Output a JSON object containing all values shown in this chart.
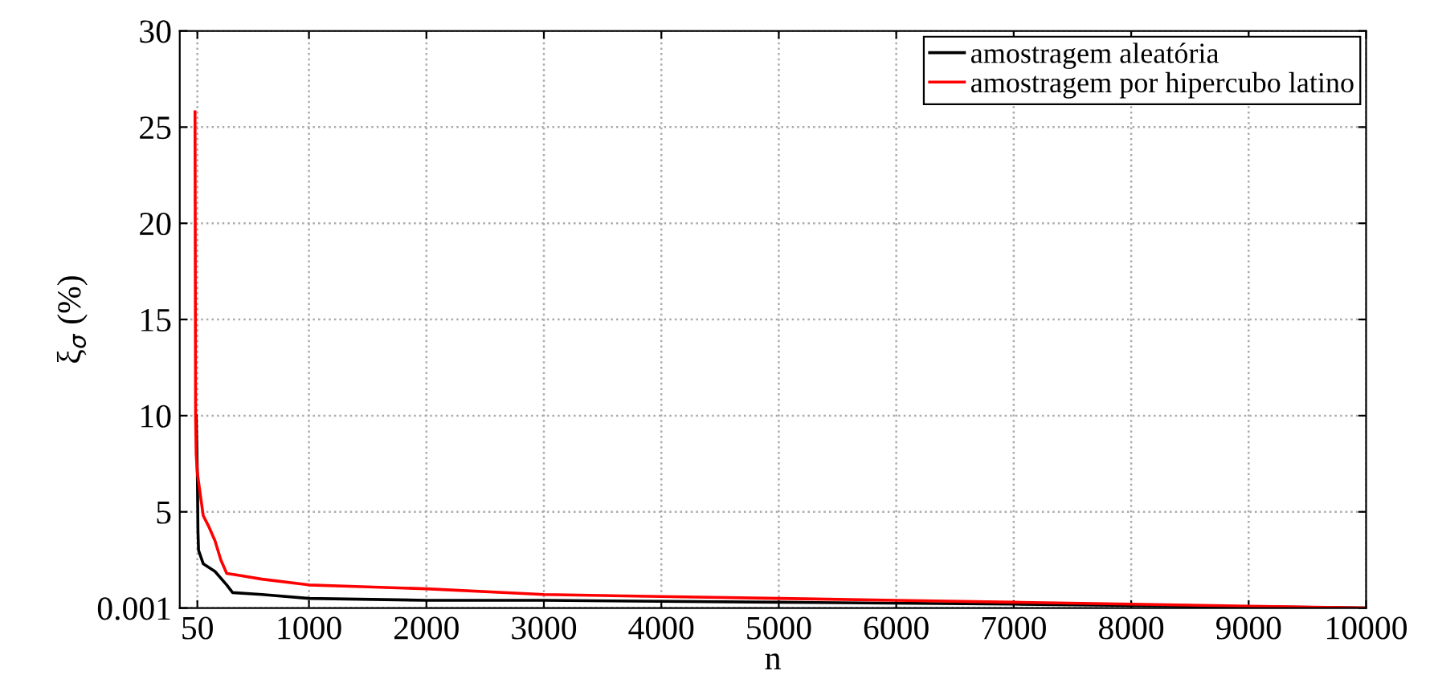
{
  "chart_data": {
    "type": "line",
    "xlabel": "n",
    "ylabel": "ξ$_{σ}$ (%)",
    "xlim": [
      -100,
      10000
    ],
    "xticks": [
      50,
      1000,
      2000,
      3000,
      4000,
      5000,
      6000,
      7000,
      8000,
      9000,
      10000
    ],
    "ylim": [
      0.001,
      30
    ],
    "yticks": [
      0.001,
      5,
      10,
      15,
      20,
      25,
      30
    ],
    "grid": true,
    "legend": "top right",
    "line_style": "solid",
    "marker": "none",
    "series": [
      {
        "name": "amostragem aleatória",
        "color": "#000000",
        "x": [
          40,
          50,
          55,
          60,
          100,
          200,
          300,
          350,
          600,
          1000,
          2000,
          3000,
          5000,
          7000,
          8500,
          10000
        ],
        "values": [
          10,
          7,
          4,
          3,
          2.3,
          1.9,
          1.2,
          0.8,
          0.7,
          0.5,
          0.4,
          0.4,
          0.3,
          0.2,
          0.1,
          0.001
        ]
      },
      {
        "name": "amostragem por hipercubo latino",
        "color": "#ff0000",
        "x": [
          30,
          35,
          40,
          50,
          100,
          150,
          200,
          250,
          300,
          400,
          600,
          1000,
          1500,
          2000,
          3000,
          4000,
          5000,
          6000,
          7000,
          8000,
          9000,
          10000
        ],
        "values": [
          25.8,
          10,
          8,
          7,
          4.8,
          4.2,
          3.5,
          2.5,
          1.8,
          1.7,
          1.5,
          1.2,
          1.1,
          1.0,
          0.7,
          0.6,
          0.5,
          0.4,
          0.3,
          0.2,
          0.1,
          0.001
        ]
      }
    ]
  }
}
